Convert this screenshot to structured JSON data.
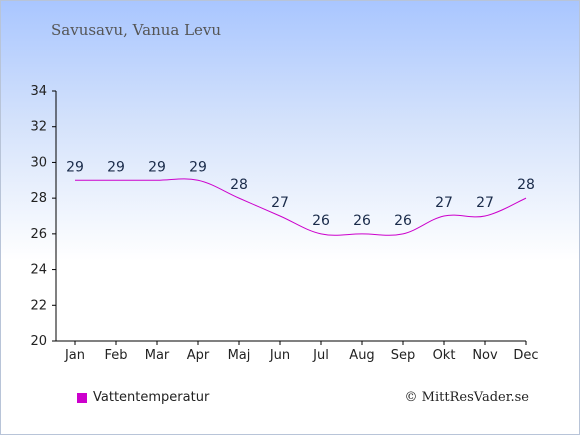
{
  "location_title": "Savusavu, Vanua Levu",
  "legend": {
    "label": "Vattentemperatur",
    "swatch_color": "#cc00cc"
  },
  "credit": "© MittResVader.se",
  "chart_data": {
    "type": "line",
    "categories": [
      "Jan",
      "Feb",
      "Mar",
      "Apr",
      "Maj",
      "Jun",
      "Jul",
      "Aug",
      "Sep",
      "Okt",
      "Nov",
      "Dec"
    ],
    "series": [
      {
        "name": "Vattentemperatur",
        "values": [
          29,
          29,
          29,
          29,
          28,
          27,
          26,
          26,
          26,
          27,
          27,
          28
        ],
        "color": "#cc00cc"
      }
    ],
    "data_labels": [
      "29",
      "29",
      "29",
      "29",
      "28",
      "27",
      "26",
      "26",
      "26",
      "27",
      "27",
      "28"
    ],
    "ylim": [
      20,
      34
    ],
    "yticks": [
      20,
      22,
      24,
      26,
      28,
      30,
      32,
      34
    ],
    "ytick_labels": [
      "20",
      "22",
      "24",
      "26",
      "28",
      "30",
      "32",
      "34"
    ],
    "grid": false,
    "legend_position": "bottom-left"
  }
}
